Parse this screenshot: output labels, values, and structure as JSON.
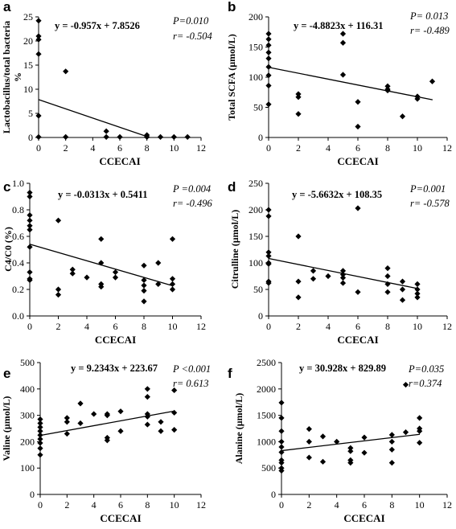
{
  "chart_data": [
    {
      "type": "scatter",
      "panel": "a",
      "xlabel": "CCECAI",
      "ylabel_lines": [
        "Lactobacillus/total bacteria",
        "%"
      ],
      "xlim": [
        0,
        12
      ],
      "ylim": [
        0,
        25
      ],
      "xticks": [
        0,
        2,
        4,
        6,
        8,
        10,
        12
      ],
      "yticks": [
        0,
        5,
        10,
        15,
        20,
        25
      ],
      "equation": "y = -0.957x + 7.8526",
      "p_text": "P=0.010",
      "r_text": "r= -0.504",
      "fit": {
        "slope": -0.957,
        "intercept": 7.8526
      },
      "points": [
        [
          0,
          24.2
        ],
        [
          0,
          21.0
        ],
        [
          0,
          20.3
        ],
        [
          0,
          17.3
        ],
        [
          0,
          4.5
        ],
        [
          0,
          0.1
        ],
        [
          2,
          13.7
        ],
        [
          2,
          0.1
        ],
        [
          5,
          1.3
        ],
        [
          5,
          0.1
        ],
        [
          6,
          0.1
        ],
        [
          8,
          0.5
        ],
        [
          8,
          0.1
        ],
        [
          9,
          0.1
        ],
        [
          10,
          0.1
        ],
        [
          11,
          0.1
        ]
      ]
    },
    {
      "type": "scatter",
      "panel": "b",
      "xlabel": "CCECAI",
      "ylabel_lines": [
        "Total SCFA (µmol/L)"
      ],
      "xlim": [
        0,
        12
      ],
      "ylim": [
        0,
        200
      ],
      "xticks": [
        0,
        2,
        4,
        6,
        8,
        10,
        12
      ],
      "yticks": [
        0,
        50,
        100,
        150,
        200
      ],
      "equation": "y = -4.8823x + 116.31",
      "p_text": "P= 0.013",
      "r_text": "r= -0.489",
      "fit": {
        "slope": -4.8823,
        "intercept": 116.31
      },
      "points": [
        [
          0,
          172
        ],
        [
          0,
          163
        ],
        [
          0,
          153
        ],
        [
          0,
          141
        ],
        [
          0,
          131
        ],
        [
          0,
          117
        ],
        [
          0,
          103
        ],
        [
          0,
          86
        ],
        [
          0,
          55
        ],
        [
          2,
          72
        ],
        [
          2,
          67
        ],
        [
          2,
          39
        ],
        [
          5,
          172
        ],
        [
          5,
          157
        ],
        [
          5,
          104
        ],
        [
          6,
          59
        ],
        [
          6,
          18
        ],
        [
          8,
          85
        ],
        [
          8,
          80
        ],
        [
          8,
          78
        ],
        [
          9,
          35
        ],
        [
          10,
          68
        ],
        [
          10,
          64
        ],
        [
          11,
          93
        ]
      ]
    },
    {
      "type": "scatter",
      "panel": "c",
      "xlabel": "CCECAI",
      "ylabel_lines": [
        "C4/C0 (%)"
      ],
      "xlim": [
        0,
        12
      ],
      "ylim": [
        0,
        1.0
      ],
      "xticks": [
        0,
        2,
        4,
        6,
        8,
        10,
        12
      ],
      "yticks": [
        0.0,
        0.2,
        0.4,
        0.6,
        0.8,
        1.0
      ],
      "ytick_labels": [
        "0.0",
        "0.2",
        "0.4",
        "0.6",
        "0.8",
        "1.0"
      ],
      "equation": "y = -0.0313x + 0.5411",
      "p_text": "P =0.004",
      "r_text": "r= -0.496",
      "fit": {
        "slope": -0.0313,
        "intercept": 0.5411
      },
      "points": [
        [
          0,
          0.93
        ],
        [
          0,
          0.9
        ],
        [
          0,
          0.76
        ],
        [
          0,
          0.72
        ],
        [
          0,
          0.68
        ],
        [
          0,
          0.65
        ],
        [
          0,
          0.52
        ],
        [
          0,
          0.33
        ],
        [
          0,
          0.28
        ],
        [
          0,
          0.27
        ],
        [
          2,
          0.72
        ],
        [
          2,
          0.2
        ],
        [
          2,
          0.16
        ],
        [
          3,
          0.35
        ],
        [
          3,
          0.32
        ],
        [
          4,
          0.29
        ],
        [
          5,
          0.58
        ],
        [
          5,
          0.4
        ],
        [
          5,
          0.24
        ],
        [
          5,
          0.22
        ],
        [
          6,
          0.33
        ],
        [
          6,
          0.29
        ],
        [
          8,
          0.38
        ],
        [
          8,
          0.27
        ],
        [
          8,
          0.23
        ],
        [
          8,
          0.19
        ],
        [
          8,
          0.11
        ],
        [
          9,
          0.4
        ],
        [
          9,
          0.24
        ],
        [
          10,
          0.58
        ],
        [
          10,
          0.28
        ],
        [
          10,
          0.24
        ],
        [
          10,
          0.2
        ]
      ]
    },
    {
      "type": "scatter",
      "panel": "d",
      "xlabel": "CCECAI",
      "ylabel_lines": [
        "Citrulline (µmol/L)"
      ],
      "xlim": [
        0,
        12
      ],
      "ylim": [
        0,
        250
      ],
      "xticks": [
        0,
        2,
        4,
        6,
        8,
        10,
        12
      ],
      "yticks": [
        0,
        50,
        100,
        150,
        200,
        250
      ],
      "equation": "y = -5.6632x + 108.35",
      "p_text": "P=0.001",
      "r_text": "r= -0.578",
      "fit": {
        "slope": -5.6632,
        "intercept": 108.35
      },
      "points": [
        [
          0,
          200
        ],
        [
          0,
          188
        ],
        [
          0,
          120
        ],
        [
          0,
          113
        ],
        [
          0,
          100
        ],
        [
          0,
          98
        ],
        [
          0,
          65
        ],
        [
          0,
          62
        ],
        [
          2,
          150
        ],
        [
          2,
          65
        ],
        [
          2,
          35
        ],
        [
          3,
          85
        ],
        [
          3,
          70
        ],
        [
          4,
          75
        ],
        [
          5,
          85
        ],
        [
          5,
          78
        ],
        [
          5,
          72
        ],
        [
          5,
          62
        ],
        [
          6,
          203
        ],
        [
          6,
          45
        ],
        [
          8,
          90
        ],
        [
          8,
          75
        ],
        [
          8,
          60
        ],
        [
          8,
          45
        ],
        [
          9,
          65
        ],
        [
          9,
          50
        ],
        [
          9,
          30
        ],
        [
          10,
          60
        ],
        [
          10,
          50
        ],
        [
          10,
          42
        ],
        [
          10,
          35
        ]
      ]
    },
    {
      "type": "scatter",
      "panel": "e",
      "xlabel": "CCECAI",
      "ylabel_lines": [
        "Valine (µmol/L)"
      ],
      "xlim": [
        0,
        12
      ],
      "ylim": [
        0,
        500
      ],
      "xticks": [
        0,
        2,
        4,
        6,
        8,
        10,
        12
      ],
      "yticks": [
        0,
        100,
        200,
        300,
        400,
        500
      ],
      "equation": "y = 9.2343x + 223.67",
      "p_text": "P <0.001",
      "r_text": "r= 0.613",
      "fit": {
        "slope": 9.2343,
        "intercept": 223.67
      },
      "points": [
        [
          0,
          285
        ],
        [
          0,
          270
        ],
        [
          0,
          255
        ],
        [
          0,
          240
        ],
        [
          0,
          225
        ],
        [
          0,
          210
        ],
        [
          0,
          195
        ],
        [
          0,
          175
        ],
        [
          0,
          150
        ],
        [
          2,
          290
        ],
        [
          2,
          275
        ],
        [
          2,
          230
        ],
        [
          3,
          345
        ],
        [
          3,
          270
        ],
        [
          4,
          305
        ],
        [
          5,
          305
        ],
        [
          5,
          300
        ],
        [
          5,
          215
        ],
        [
          5,
          205
        ],
        [
          6,
          315
        ],
        [
          6,
          240
        ],
        [
          8,
          400
        ],
        [
          8,
          370
        ],
        [
          8,
          305
        ],
        [
          8,
          295
        ],
        [
          8,
          265
        ],
        [
          9,
          275
        ],
        [
          9,
          240
        ],
        [
          10,
          395
        ],
        [
          10,
          310
        ],
        [
          10,
          245
        ]
      ]
    },
    {
      "type": "scatter",
      "panel": "f",
      "xlabel": "CCECAI",
      "ylabel_lines": [
        "Alanine (µmol/L)"
      ],
      "xlim": [
        0,
        12
      ],
      "ylim": [
        0,
        2500
      ],
      "xticks": [
        0,
        2,
        4,
        6,
        8,
        10,
        12
      ],
      "yticks": [
        0,
        500,
        1000,
        1500,
        2000,
        2500
      ],
      "equation": "y = 30.928x + 829.89",
      "p_text": "P=0.035",
      "r_text": "r=0.374",
      "fit": {
        "slope": 30.928,
        "intercept": 829.89
      },
      "points": [
        [
          0,
          1740
        ],
        [
          0,
          1450
        ],
        [
          0,
          1200
        ],
        [
          0,
          1000
        ],
        [
          0,
          900
        ],
        [
          0,
          800
        ],
        [
          0,
          650
        ],
        [
          0,
          600
        ],
        [
          0,
          500
        ],
        [
          0,
          450
        ],
        [
          2,
          1240
        ],
        [
          2,
          1000
        ],
        [
          2,
          700
        ],
        [
          3,
          1100
        ],
        [
          3,
          620
        ],
        [
          4,
          1000
        ],
        [
          5,
          880
        ],
        [
          5,
          820
        ],
        [
          5,
          650
        ],
        [
          5,
          600
        ],
        [
          6,
          1080
        ],
        [
          6,
          790
        ],
        [
          8,
          1130
        ],
        [
          8,
          1000
        ],
        [
          8,
          850
        ],
        [
          8,
          600
        ],
        [
          9,
          2080
        ],
        [
          9,
          1180
        ],
        [
          10,
          1450
        ],
        [
          10,
          1250
        ],
        [
          10,
          1200
        ],
        [
          10,
          980
        ]
      ]
    }
  ]
}
